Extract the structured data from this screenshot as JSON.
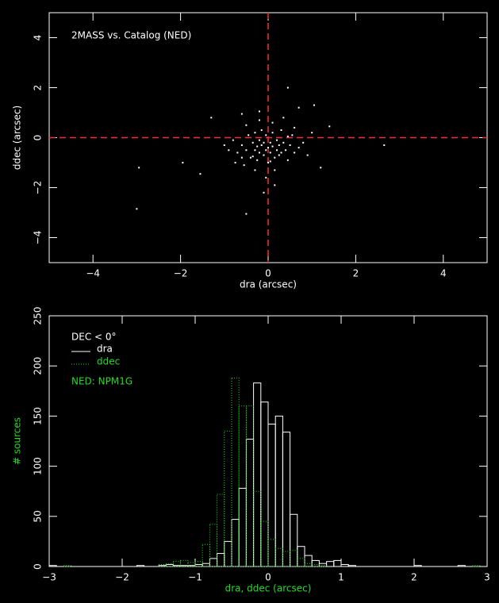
{
  "chart_data": [
    {
      "type": "scatter",
      "annotation": "2MASS vs. Catalog (NED)",
      "x_label": "dra (arcsec)",
      "y_label": "ddec (arcsec)",
      "color": "#ffffff",
      "x": [
        -0.6,
        -0.5,
        -0.45,
        -0.4,
        -0.35,
        -0.3,
        -0.3,
        -0.25,
        -0.2,
        -0.2,
        -0.15,
        -0.15,
        -0.1,
        -0.1,
        -0.05,
        -0.05,
        0,
        0,
        0.05,
        0.05,
        0.1,
        0.1,
        0.15,
        0.2,
        0.2,
        0.25,
        0.3,
        0.3,
        0.35,
        0.4,
        0.45,
        0.5,
        0.55,
        0.6,
        0.7,
        0.8,
        -0.7,
        -0.8,
        -0.9,
        0.9,
        -0.55,
        -0.3,
        -0.05,
        0.15,
        -0.1,
        0.1,
        -0.2,
        0.35,
        -0.5,
        0.6,
        -0.35,
        -0.25,
        0.05,
        0.25,
        -0.6,
        0.45,
        1.0,
        -1.0,
        0.15,
        -0.75,
        -3.0,
        -2.95,
        -1.95,
        -1.55,
        -0.5,
        0.45,
        1.05,
        -0.6,
        1.4,
        2.65,
        -1.3,
        0.7,
        -0.2,
        1.2
      ],
      "y": [
        -0.3,
        -0.5,
        0.1,
        -0.8,
        -0.2,
        -0.5,
        0.2,
        -0.9,
        -0.1,
        -0.6,
        -0.3,
        0.3,
        -0.7,
        -0.2,
        -0.5,
        0.1,
        -0.4,
        -1.0,
        -0.2,
        -0.6,
        -0.35,
        0.2,
        -0.8,
        -0.5,
        -0.1,
        -0.3,
        -0.6,
        0.3,
        -0.2,
        -0.5,
        -0.9,
        -0.3,
        0.1,
        -0.6,
        -0.4,
        -0.2,
        -0.6,
        -0.1,
        -0.5,
        -0.7,
        -1.1,
        -1.3,
        -1.6,
        -1.9,
        -2.2,
        0.6,
        0.7,
        0.8,
        0.5,
        0.4,
        -0.75,
        -0.35,
        -0.95,
        -0.7,
        -0.8,
        0.05,
        0.2,
        -0.3,
        -1.3,
        -1.0,
        -2.85,
        -1.2,
        -1.0,
        -1.45,
        -3.05,
        2.0,
        1.3,
        0.95,
        0.45,
        -0.3,
        0.8,
        1.2,
        1.05,
        -1.2
      ],
      "xlim": [
        -5,
        5
      ],
      "ylim": [
        -5,
        5
      ],
      "xticks": [
        {
          "value": -4,
          "label": "−4"
        },
        {
          "value": -2,
          "label": "−2"
        },
        0,
        2,
        4
      ],
      "yticks": [
        {
          "value": -4,
          "label": "−4"
        },
        {
          "value": -2,
          "label": "−2"
        },
        0,
        2,
        4
      ],
      "reference_lines": {
        "x": 0,
        "y": 0,
        "color": "#ff2a2a"
      }
    },
    {
      "type": "histogram",
      "legend_title": "DEC < 0°",
      "annotation": "NED: NPM1G",
      "annotation_color": "#22dd22",
      "x_label": "dra, ddec (arcsec)",
      "y_label": "# sources",
      "label_color": "#22dd22",
      "bins": [
        -3.0,
        -2.9,
        -2.8,
        -2.7,
        -2.6,
        -2.5,
        -2.4,
        -2.3,
        -2.2,
        -2.1,
        -2.0,
        -1.9,
        -1.8,
        -1.7,
        -1.6,
        -1.5,
        -1.4,
        -1.3,
        -1.2,
        -1.1,
        -1.0,
        -0.9,
        -0.8,
        -0.7,
        -0.6,
        -0.5,
        -0.4,
        -0.3,
        -0.2,
        -0.1,
        0,
        0.1,
        0.2,
        0.3,
        0.4,
        0.5,
        0.6,
        0.7,
        0.8,
        0.9,
        1.0,
        1.1,
        1.2,
        1.3,
        1.4,
        1.5,
        1.6,
        1.7,
        1.8,
        1.9,
        2.0,
        2.1,
        2.2,
        2.3,
        2.4,
        2.5,
        2.6,
        2.7,
        2.8,
        2.9,
        3.0
      ],
      "series": [
        {
          "name": "dra",
          "color": "#ffffff",
          "style": "solid",
          "values": [
            1,
            0,
            0,
            0,
            0,
            0,
            0,
            0,
            0,
            0,
            0,
            0,
            1,
            0,
            0,
            1,
            2,
            1,
            1,
            1,
            2,
            3,
            8,
            13,
            25,
            47,
            78,
            127,
            183,
            164,
            142,
            150,
            134,
            52,
            20,
            11,
            6,
            3,
            5,
            6,
            2,
            1,
            0,
            0,
            0,
            0,
            0,
            0,
            0,
            0,
            1,
            0,
            0,
            0,
            0,
            0,
            1,
            0,
            0,
            0
          ]
        },
        {
          "name": "ddec",
          "color": "#22dd22",
          "style": "dotted",
          "values": [
            0,
            0,
            1,
            0,
            0,
            0,
            0,
            0,
            0,
            0,
            0,
            0,
            0,
            0,
            0,
            2,
            3,
            5,
            6,
            4,
            5,
            22,
            42,
            72,
            135,
            188,
            160,
            160,
            75,
            45,
            27,
            18,
            15,
            16,
            8,
            3,
            2,
            1,
            0,
            0,
            0,
            0,
            0,
            0,
            0,
            0,
            0,
            0,
            0,
            0,
            0,
            0,
            0,
            0,
            0,
            0,
            0,
            0,
            1,
            0
          ]
        }
      ],
      "xlim": [
        -3,
        3
      ],
      "ylim": [
        0,
        250
      ],
      "xticks": [
        {
          "value": -3,
          "label": "−3"
        },
        {
          "value": -2,
          "label": "−2"
        },
        {
          "value": -1,
          "label": "−1"
        },
        0,
        1,
        2,
        3
      ],
      "yticks": [
        0,
        50,
        100,
        150,
        200,
        250
      ]
    }
  ]
}
